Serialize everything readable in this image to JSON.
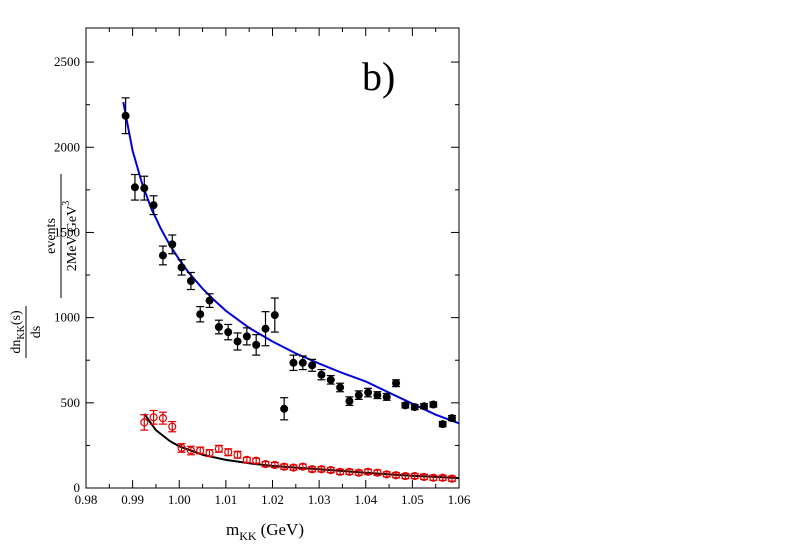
{
  "chart_data": {
    "type": "scatter",
    "panel_label": "b)",
    "xlabel": {
      "main": "m",
      "sub": "KK",
      "unit": "(GeV)"
    },
    "ylabel": {
      "left_numerator": "dn",
      "left_numerator_sub": "KK",
      "left_numerator_tail": "(s)",
      "left_denominator": "ds",
      "right_numerator": "events",
      "right_denominator": "2MeV GeV",
      "right_denominator_sup": "3"
    },
    "xlim": [
      0.98,
      1.06
    ],
    "ylim": [
      0,
      2700
    ],
    "x_ticks": [
      0.98,
      0.99,
      1.0,
      1.01,
      1.02,
      1.03,
      1.04,
      1.05,
      1.06
    ],
    "x_tick_labels": [
      "0.98",
      "0.99",
      "1.00",
      "1.01",
      "1.02",
      "1.03",
      "1.04",
      "1.05",
      "1.06"
    ],
    "y_ticks": [
      0,
      500,
      1000,
      1500,
      2000,
      2500
    ],
    "y_tick_labels": [
      "0",
      "500",
      "1000",
      "1500",
      "2000",
      "2500"
    ],
    "colors": {
      "black_series": "#000000",
      "red_series": "#e00000",
      "blue_fit": "#0000dd",
      "black_fit": "#000000"
    },
    "series": [
      {
        "name": "black points",
        "marker": "filled-circle",
        "points": [
          [
            0.9885,
            2185,
            105
          ],
          [
            0.9905,
            1765,
            75
          ],
          [
            0.9925,
            1760,
            70
          ],
          [
            0.9945,
            1660,
            55
          ],
          [
            0.9965,
            1365,
            55
          ],
          [
            0.9985,
            1430,
            55
          ],
          [
            1.0005,
            1295,
            45
          ],
          [
            1.0025,
            1215,
            50
          ],
          [
            1.0045,
            1020,
            45
          ],
          [
            1.0065,
            1100,
            40
          ],
          [
            1.0085,
            945,
            40
          ],
          [
            1.0105,
            915,
            45
          ],
          [
            1.0125,
            860,
            50
          ],
          [
            1.0145,
            890,
            50
          ],
          [
            1.0165,
            840,
            60
          ],
          [
            1.0185,
            935,
            100
          ],
          [
            1.0205,
            1015,
            100
          ],
          [
            1.0225,
            465,
            65
          ],
          [
            1.0245,
            735,
            45
          ],
          [
            1.0265,
            735,
            40
          ],
          [
            1.0285,
            720,
            35
          ],
          [
            1.0305,
            665,
            30
          ],
          [
            1.0325,
            635,
            25
          ],
          [
            1.0345,
            590,
            25
          ],
          [
            1.0365,
            510,
            25
          ],
          [
            1.0385,
            545,
            25
          ],
          [
            1.0405,
            560,
            25
          ],
          [
            1.0425,
            545,
            20
          ],
          [
            1.0445,
            535,
            20
          ],
          [
            1.0465,
            615,
            20
          ],
          [
            1.0485,
            485,
            15
          ],
          [
            1.0505,
            475,
            15
          ],
          [
            1.0525,
            480,
            15
          ],
          [
            1.0545,
            490,
            15
          ],
          [
            1.0565,
            375,
            15
          ],
          [
            1.0585,
            410,
            15
          ]
        ]
      },
      {
        "name": "red points",
        "marker": "open-circle",
        "points": [
          [
            0.9925,
            385,
            45
          ],
          [
            0.9945,
            415,
            40
          ],
          [
            0.9965,
            410,
            35
          ],
          [
            0.9985,
            360,
            30
          ],
          [
            1.0005,
            235,
            25
          ],
          [
            1.0025,
            220,
            25
          ],
          [
            1.0045,
            220,
            20
          ],
          [
            1.0065,
            205,
            20
          ],
          [
            1.0085,
            230,
            20
          ],
          [
            1.0105,
            210,
            20
          ],
          [
            1.0125,
            195,
            20
          ],
          [
            1.0145,
            165,
            15
          ],
          [
            1.0165,
            160,
            15
          ],
          [
            1.0185,
            140,
            15
          ],
          [
            1.0205,
            135,
            15
          ],
          [
            1.0225,
            125,
            15
          ],
          [
            1.0245,
            120,
            15
          ],
          [
            1.0265,
            125,
            15
          ],
          [
            1.0285,
            110,
            15
          ],
          [
            1.0305,
            110,
            15
          ],
          [
            1.0325,
            105,
            15
          ],
          [
            1.0345,
            95,
            15
          ],
          [
            1.0365,
            95,
            15
          ],
          [
            1.0385,
            90,
            15
          ],
          [
            1.0405,
            95,
            15
          ],
          [
            1.0425,
            90,
            15
          ],
          [
            1.0445,
            80,
            15
          ],
          [
            1.0465,
            75,
            15
          ],
          [
            1.0485,
            70,
            15
          ],
          [
            1.0505,
            70,
            15
          ],
          [
            1.0525,
            65,
            15
          ],
          [
            1.0545,
            60,
            15
          ],
          [
            1.0565,
            60,
            15
          ],
          [
            1.0585,
            55,
            15
          ]
        ]
      }
    ],
    "fits": [
      {
        "name": "blue fit",
        "x": [
          0.988,
          0.99,
          0.992,
          0.994,
          0.996,
          0.998,
          1.0,
          1.002,
          1.005,
          1.008,
          1.01,
          1.015,
          1.02,
          1.025,
          1.03,
          1.035,
          1.04,
          1.045,
          1.05,
          1.055,
          1.06
        ],
        "y": [
          2265,
          1980,
          1790,
          1640,
          1525,
          1425,
          1340,
          1265,
          1170,
          1090,
          1040,
          940,
          860,
          790,
          730,
          675,
          625,
          560,
          495,
          430,
          380
        ]
      },
      {
        "name": "black fit",
        "x": [
          0.9925,
          0.995,
          0.998,
          1.0,
          1.005,
          1.01,
          1.015,
          1.02,
          1.025,
          1.03,
          1.035,
          1.04,
          1.045,
          1.05,
          1.055,
          1.06
        ],
        "y": [
          435,
          340,
          275,
          245,
          195,
          165,
          145,
          130,
          120,
          110,
          100,
          90,
          80,
          72,
          65,
          58
        ]
      }
    ]
  }
}
